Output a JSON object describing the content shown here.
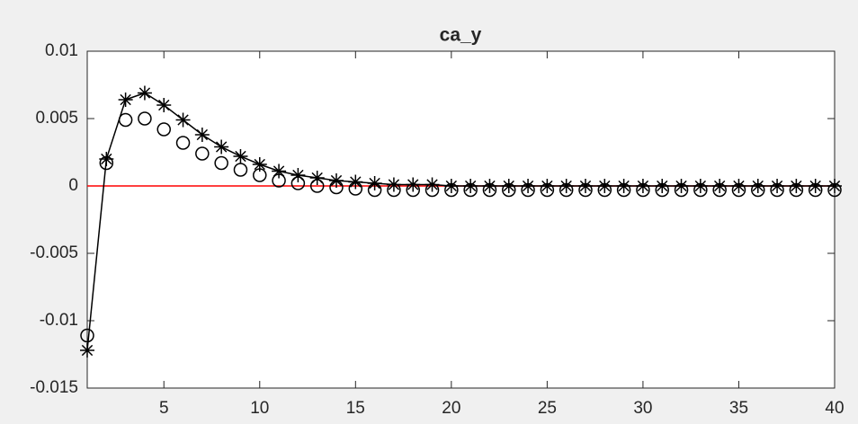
{
  "chart_data": {
    "type": "line",
    "title": "ca_y",
    "x": [
      1,
      2,
      3,
      4,
      5,
      6,
      7,
      8,
      9,
      10,
      11,
      12,
      13,
      14,
      15,
      16,
      17,
      18,
      19,
      20,
      21,
      22,
      23,
      24,
      25,
      26,
      27,
      28,
      29,
      30,
      31,
      32,
      33,
      34,
      35,
      36,
      37,
      38,
      39,
      40
    ],
    "series": [
      {
        "color": "#000000",
        "marker": "star",
        "line": true,
        "values": [
          -0.0122,
          0.002,
          0.0064,
          0.0069,
          0.006,
          0.0049,
          0.0038,
          0.0029,
          0.0022,
          0.0016,
          0.0011,
          0.0008,
          0.0006,
          0.0004,
          0.0003,
          0.0002,
          0.0001,
          0.0001,
          0.0001,
          0,
          0,
          0,
          0,
          0,
          0,
          0,
          0,
          0,
          0,
          0,
          0,
          0,
          0,
          0,
          0,
          0,
          0,
          0,
          0,
          0
        ]
      },
      {
        "color": "#000000",
        "marker": "circle",
        "line": false,
        "values": [
          -0.0111,
          0.0017,
          0.0049,
          0.005,
          0.0042,
          0.0032,
          0.0024,
          0.0017,
          0.0012,
          0.0008,
          0.0004,
          0.0002,
          0,
          -0.0001,
          -0.0002,
          -0.0003,
          -0.0003,
          -0.0003,
          -0.0003,
          -0.0003,
          -0.0003,
          -0.0003,
          -0.0003,
          -0.0003,
          -0.0003,
          -0.0003,
          -0.0003,
          -0.0003,
          -0.0003,
          -0.0003,
          -0.0003,
          -0.0003,
          -0.0003,
          -0.0003,
          -0.0003,
          -0.0003,
          -0.0003,
          -0.0003,
          -0.0003,
          -0.0003
        ]
      }
    ],
    "hline": {
      "value": 0,
      "color": "#ff0000"
    },
    "xlim": [
      1,
      40
    ],
    "xticks": [
      5,
      10,
      15,
      20,
      25,
      30,
      35,
      40
    ],
    "ylim": [
      -0.015,
      0.01
    ],
    "yticks": [
      -0.015,
      -0.01,
      -0.005,
      0,
      0.005,
      0.01
    ],
    "grid": false
  }
}
